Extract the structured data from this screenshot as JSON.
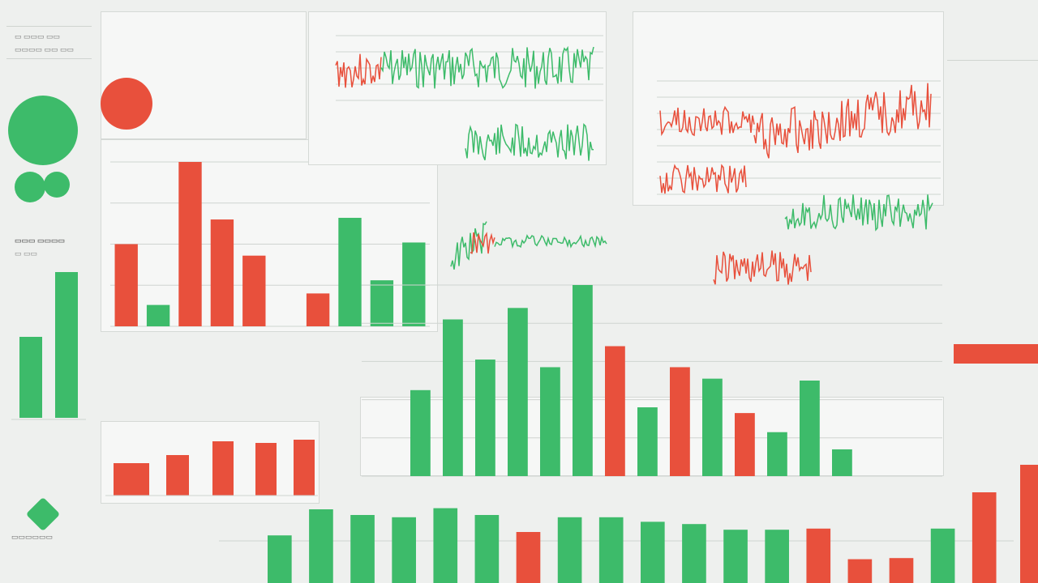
{
  "colors": {
    "green": "#3dbb6a",
    "red": "#e8503c",
    "grid": "#cfd4d0",
    "bg": "#eef0ee"
  },
  "header": {
    "title": "",
    "subtitle": "",
    "right_title": "",
    "right_badge": "",
    "far_right": ""
  },
  "kpi": {
    "green_value": "",
    "red_value": "",
    "small_a": "",
    "small_b": ""
  },
  "chart_data": [
    {
      "type": "bar",
      "note": "main grouped bar chart (left panel)",
      "series": [
        {
          "color": "red",
          "values": [
            0.5,
            0,
            1.0,
            0.65,
            0.43,
            0,
            0.2,
            0,
            0,
            0
          ]
        },
        {
          "color": "green",
          "values": [
            0,
            0.13,
            0,
            0,
            0,
            0,
            0,
            0.66,
            0.28,
            0.51
          ]
        }
      ],
      "ylim": [
        0,
        1
      ]
    },
    {
      "type": "bar",
      "note": "lower-center bars",
      "values_green": [
        0.45,
        0.82,
        0.61,
        0.88,
        0.57,
        1.0,
        0.0,
        0.36,
        0.0,
        0.51,
        0.0,
        0.23,
        0.5,
        0.14
      ],
      "values_red": [
        0.0,
        0.0,
        0.0,
        0.0,
        0.0,
        0.0,
        0.68,
        0.0,
        0.57,
        0.0,
        0.33,
        0.0,
        0.0,
        0.0
      ],
      "ylim": [
        0,
        1
      ]
    },
    {
      "type": "bar",
      "note": "bottom row bars",
      "colors": [
        "green",
        "green",
        "green",
        "green",
        "green",
        "green",
        "red",
        "green",
        "green",
        "green",
        "green",
        "green",
        "green",
        "red",
        "red",
        "red",
        "green",
        "red"
      ],
      "values": [
        0.42,
        0.65,
        0.6,
        0.58,
        0.66,
        0.6,
        0.45,
        0.58,
        0.58,
        0.54,
        0.52,
        0.47,
        0.47,
        0.48,
        0.21,
        0.22,
        0.48,
        0.8
      ],
      "ylim": [
        0,
        1
      ]
    },
    {
      "type": "line",
      "note": "noisy series, upper-center",
      "series": [
        {
          "color": "red",
          "trend": "volatile then falling"
        },
        {
          "color": "green",
          "trend": "volatile high"
        }
      ]
    },
    {
      "type": "line",
      "note": "noisy series, upper-right",
      "series": [
        {
          "color": "red",
          "trend": "volatile, rising at end"
        },
        {
          "color": "green",
          "trend": "volatile, flat"
        }
      ]
    }
  ]
}
